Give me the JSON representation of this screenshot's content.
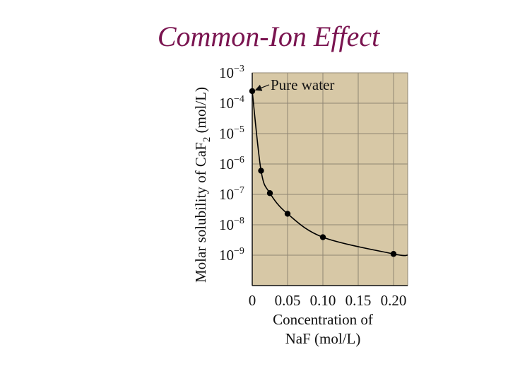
{
  "slide": {
    "title": "Common-Ion Effect"
  },
  "colors": {
    "title": "#7a1450",
    "plot_background": "#d7c8a6",
    "grid": "#8f8673",
    "curve": "#000000"
  },
  "chart_data": {
    "type": "line",
    "title": "",
    "xlabel_lines": [
      "Concentration of",
      "NaF (mol/L)"
    ],
    "ylabel_parts": [
      "Molar solubility of CaF",
      "2",
      " (mol/L)"
    ],
    "x_scale": "linear",
    "y_scale": "log",
    "xlim": [
      0,
      0.22
    ],
    "ylim": [
      1e-10,
      0.001
    ],
    "x_ticks": [
      {
        "value": 0,
        "label": "0"
      },
      {
        "value": 0.05,
        "label": "0.05"
      },
      {
        "value": 0.1,
        "label": "0.10"
      },
      {
        "value": 0.15,
        "label": "0.15"
      },
      {
        "value": 0.2,
        "label": "0.20"
      }
    ],
    "y_ticks": [
      {
        "value": 0.001,
        "base": "10",
        "exp": "−3"
      },
      {
        "value": 0.0001,
        "base": "10",
        "exp": "−4"
      },
      {
        "value": 1e-05,
        "base": "10",
        "exp": "−5"
      },
      {
        "value": 1e-06,
        "base": "10",
        "exp": "−6"
      },
      {
        "value": 1e-07,
        "base": "10",
        "exp": "−7"
      },
      {
        "value": 1e-08,
        "base": "10",
        "exp": "−8"
      },
      {
        "value": 1e-09,
        "base": "10",
        "exp": "−9"
      }
    ],
    "grid": true,
    "points": [
      {
        "x": 0.0,
        "y": 0.00025
      },
      {
        "x": 0.0125,
        "y": 6e-07
      },
      {
        "x": 0.025,
        "y": 1.1e-07
      },
      {
        "x": 0.05,
        "y": 2.3e-08
      },
      {
        "x": 0.1,
        "y": 3.9e-09
      },
      {
        "x": 0.2,
        "y": 1.1e-09
      }
    ],
    "curve_end": {
      "x": 0.22,
      "y": 1e-09
    },
    "annotations": [
      {
        "text": "Pure water",
        "point_index": 0
      }
    ]
  }
}
